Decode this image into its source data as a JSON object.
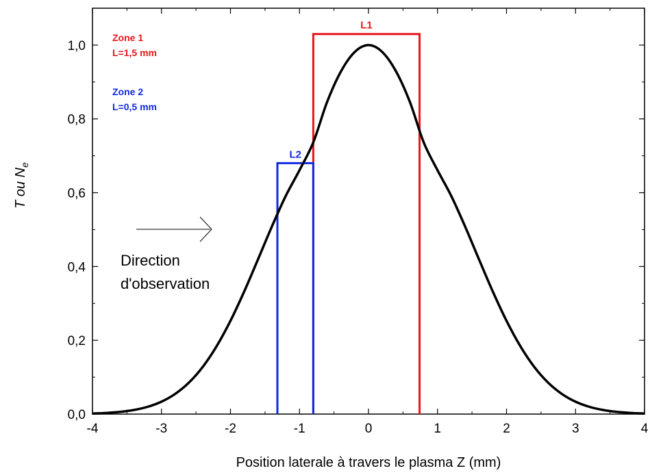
{
  "chart_data": {
    "type": "line",
    "xlabel": "Position laterale à travers le plasma Z (mm)",
    "ylabel": {
      "main": "T ou N",
      "subscript": "e"
    },
    "xlim": [
      -4,
      4
    ],
    "ylim": [
      0,
      1.1
    ],
    "x_ticks": [
      {
        "value": -4,
        "label": "-4"
      },
      {
        "value": -3,
        "label": "-3"
      },
      {
        "value": -2,
        "label": "-2"
      },
      {
        "value": -1,
        "label": "-1"
      },
      {
        "value": 0,
        "label": "0"
      },
      {
        "value": 1,
        "label": "1"
      },
      {
        "value": 2,
        "label": "2"
      },
      {
        "value": 3,
        "label": "3"
      },
      {
        "value": 4,
        "label": "4"
      }
    ],
    "y_ticks": [
      {
        "value": 0.0,
        "label": "0,0"
      },
      {
        "value": 0.2,
        "label": "0,2"
      },
      {
        "value": 0.4,
        "label": "0,4"
      },
      {
        "value": 0.6,
        "label": "0,6"
      },
      {
        "value": 0.8,
        "label": "0,8"
      },
      {
        "value": 1.0,
        "label": "1,0"
      }
    ],
    "grid": false,
    "series": [
      {
        "color": "#000000",
        "x": [
          -4.0,
          -3.8,
          -3.6,
          -3.4,
          -3.2,
          -3.0,
          -2.8,
          -2.6,
          -2.4,
          -2.2,
          -2.0,
          -1.8,
          -1.6,
          -1.4,
          -1.2,
          -1.0,
          -0.8,
          -0.6,
          -0.4,
          -0.2,
          0.0,
          0.2,
          0.4,
          0.6,
          0.8,
          1.0,
          1.2,
          1.4,
          1.6,
          1.8,
          2.0,
          2.2,
          2.4,
          2.6,
          2.8,
          3.0,
          3.2,
          3.4,
          3.6,
          3.8,
          4.0
        ],
        "y": [
          0.0015,
          0.0031,
          0.006,
          0.0111,
          0.0197,
          0.0336,
          0.0549,
          0.0858,
          0.1284,
          0.1842,
          0.2528,
          0.3327,
          0.4199,
          0.5084,
          0.5909,
          0.661,
          0.7364,
          0.8458,
          0.9284,
          0.9813,
          1.0,
          0.9813,
          0.9284,
          0.8458,
          0.7364,
          0.661,
          0.5909,
          0.5084,
          0.4199,
          0.3327,
          0.2528,
          0.1842,
          0.1284,
          0.0858,
          0.0549,
          0.0336,
          0.0197,
          0.0111,
          0.006,
          0.0031,
          0.0015
        ]
      }
    ],
    "regions": [
      {
        "label": "L1",
        "color": "#e8141c",
        "x_start": -0.8,
        "x_end": 0.74,
        "height": 1.03
      },
      {
        "label": "L2",
        "color": "#1028e0",
        "x_start": -1.32,
        "x_end": -0.8,
        "height": 0.68
      }
    ],
    "legend": {
      "zone1": {
        "title": "Zone 1",
        "value": "L=1,5 mm",
        "color": "#e8141c"
      },
      "zone2": {
        "title": "Zone 2",
        "value": "L=0,5 mm",
        "color": "#1028e0"
      }
    },
    "annotation": {
      "line1": "Direction",
      "line2": "d'observation"
    }
  }
}
